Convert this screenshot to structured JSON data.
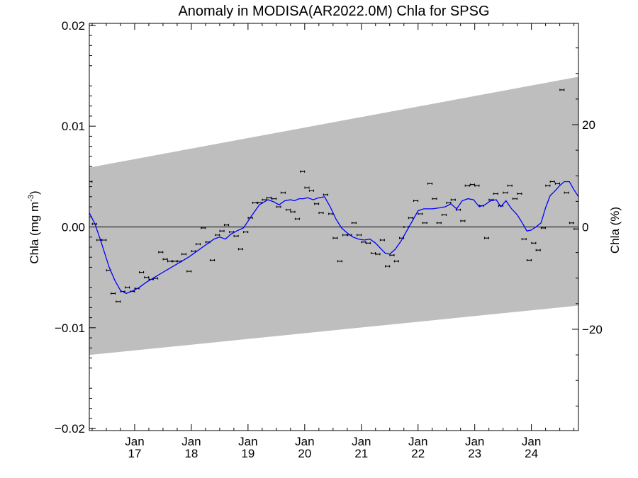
{
  "chart_data": {
    "type": "line",
    "title": "Anomaly in MODISA(AR2022.0M) Chla for SPSG",
    "ylabel_left": {
      "main": "Chla (mg m",
      "sup": "-3",
      "close": ")"
    },
    "ylabel_right": "Chla (%)",
    "xlim": [
      2016.2,
      2024.83
    ],
    "ylim": [
      -0.0202,
      0.0202
    ],
    "ylim_right": [
      -39.8,
      39.8
    ],
    "yticks_left": [
      {
        "v": 0.02,
        "label": "0.02"
      },
      {
        "v": 0.01,
        "label": "0.01"
      },
      {
        "v": 0.0,
        "label": "0.00"
      },
      {
        "v": -0.01,
        "label": "−0.01"
      },
      {
        "v": -0.02,
        "label": "−0.02"
      }
    ],
    "yticks_right": [
      {
        "v": 20,
        "label": "20"
      },
      {
        "v": 0,
        "label": "0"
      },
      {
        "v": -20,
        "label": "−20"
      }
    ],
    "xticks": [
      {
        "v": 2017.0,
        "month": "Jan",
        "year": "17"
      },
      {
        "v": 2018.0,
        "month": "Jan",
        "year": "18"
      },
      {
        "v": 2019.0,
        "month": "Jan",
        "year": "19"
      },
      {
        "v": 2020.0,
        "month": "Jan",
        "year": "20"
      },
      {
        "v": 2021.0,
        "month": "Jan",
        "year": "21"
      },
      {
        "v": 2022.0,
        "month": "Jan",
        "year": "22"
      },
      {
        "v": 2023.0,
        "month": "Jan",
        "year": "23"
      },
      {
        "v": 2024.0,
        "month": "Jan",
        "year": "24"
      }
    ],
    "band": {
      "color": "#bebebe",
      "upper": [
        [
          2016.2,
          0.0059
        ],
        [
          2024.83,
          0.0149
        ]
      ],
      "lower": [
        [
          2016.2,
          -0.0127
        ],
        [
          2024.83,
          -0.0078
        ]
      ]
    },
    "zero_line": 0.0,
    "colors": {
      "line": "#0000ff",
      "points": "#000000"
    },
    "series": [
      {
        "type": "scatter",
        "x": [
          2016.21,
          2016.29,
          2016.37,
          2016.46,
          2016.54,
          2016.62,
          2016.71,
          2016.79,
          2016.87,
          2016.96,
          2017.04,
          2017.12,
          2017.21,
          2017.29,
          2017.37,
          2017.46,
          2017.54,
          2017.62,
          2017.71,
          2017.79,
          2017.87,
          2017.96,
          2018.04,
          2018.12,
          2018.21,
          2018.29,
          2018.37,
          2018.46,
          2018.54,
          2018.62,
          2018.71,
          2018.79,
          2018.87,
          2018.96,
          2019.04,
          2019.12,
          2019.21,
          2019.29,
          2019.37,
          2019.46,
          2019.54,
          2019.62,
          2019.71,
          2019.79,
          2019.87,
          2019.96,
          2020.04,
          2020.12,
          2020.21,
          2020.29,
          2020.37,
          2020.46,
          2020.54,
          2020.62,
          2020.71,
          2020.79,
          2020.87,
          2020.96,
          2021.04,
          2021.12,
          2021.21,
          2021.29,
          2021.37,
          2021.46,
          2021.54,
          2021.62,
          2021.71,
          2021.79,
          2021.87,
          2021.96,
          2022.04,
          2022.12,
          2022.21,
          2022.29,
          2022.37,
          2022.46,
          2022.54,
          2022.62,
          2022.71,
          2022.79,
          2022.87,
          2022.96,
          2023.04,
          2023.12,
          2023.21,
          2023.29,
          2023.37,
          2023.46,
          2023.54,
          2023.62,
          2023.71,
          2023.79,
          2023.87,
          2023.96,
          2024.04,
          2024.12,
          2024.21,
          2024.29,
          2024.37,
          2024.46,
          2024.54,
          2024.62,
          2024.71,
          2024.79
        ],
        "y": [
          0.0045,
          0.0003,
          -0.0013,
          -0.0013,
          -0.0043,
          -0.0066,
          -0.0074,
          -0.0064,
          -0.006,
          -0.0064,
          -0.0061,
          -0.0045,
          -0.005,
          -0.0052,
          -0.0051,
          -0.0025,
          -0.0032,
          -0.0034,
          -0.0034,
          -0.0034,
          -0.0027,
          -0.0044,
          -0.0024,
          -0.0017,
          -0.0001,
          -0.0015,
          -0.0033,
          -0.0008,
          -0.0004,
          0.0002,
          -0.0005,
          -0.0009,
          -0.0022,
          -0.0005,
          0.0009,
          0.0024,
          0.0024,
          0.0027,
          0.0029,
          0.0028,
          0.002,
          0.0034,
          0.0017,
          0.0015,
          0.0008,
          0.0055,
          0.0039,
          0.0036,
          0.0023,
          0.0014,
          0.0032,
          0.0013,
          -0.0011,
          -0.0034,
          -0.0008,
          -0.0008,
          0.0004,
          -0.0008,
          -0.0015,
          -0.0016,
          -0.0026,
          -0.0027,
          -0.0013,
          -0.0039,
          -0.0028,
          -0.0034,
          -0.0011,
          0.0,
          0.0009,
          0.0026,
          0.0013,
          0.0004,
          0.0043,
          0.0028,
          0.0004,
          0.0012,
          0.0024,
          0.0027,
          0.0017,
          0.0006,
          0.0041,
          0.0042,
          0.0041,
          0.0021,
          -0.0011,
          0.0027,
          0.0033,
          0.0021,
          0.0034,
          0.0041,
          0.0028,
          0.0033,
          -0.0012,
          -0.0033,
          -0.0016,
          -0.0023,
          -0.0001,
          0.0041,
          0.0045,
          0.0043,
          0.0136,
          0.0034,
          0.0004,
          -0.0002
        ]
      },
      {
        "type": "line",
        "x": [
          2016.2,
          2016.3,
          2016.42,
          2016.55,
          2016.65,
          2016.75,
          2016.85,
          2016.98,
          2017.08,
          2017.2,
          2017.35,
          2017.5,
          2017.65,
          2017.8,
          2017.95,
          2018.1,
          2018.25,
          2018.4,
          2018.5,
          2018.6,
          2018.7,
          2018.8,
          2018.92,
          2019.05,
          2019.2,
          2019.35,
          2019.45,
          2019.55,
          2019.65,
          2019.75,
          2019.82,
          2019.9,
          2019.98,
          2020.05,
          2020.15,
          2020.25,
          2020.35,
          2020.45,
          2020.55,
          2020.65,
          2020.75,
          2020.85,
          2020.95,
          2021.05,
          2021.15,
          2021.25,
          2021.35,
          2021.42,
          2021.5,
          2021.6,
          2021.7,
          2021.8,
          2021.9,
          2022.0,
          2022.1,
          2022.25,
          2022.38,
          2022.48,
          2022.58,
          2022.68,
          2022.78,
          2022.88,
          2022.98,
          2023.08,
          2023.18,
          2023.28,
          2023.38,
          2023.46,
          2023.55,
          2023.65,
          2023.75,
          2023.85,
          2023.92,
          2024.0,
          2024.08,
          2024.17,
          2024.25,
          2024.33,
          2024.42,
          2024.5,
          2024.58,
          2024.67,
          2024.75,
          2024.83
        ],
        "y": [
          0.0014,
          0.0003,
          -0.0017,
          -0.004,
          -0.0053,
          -0.0063,
          -0.0066,
          -0.0063,
          -0.006,
          -0.0055,
          -0.005,
          -0.0045,
          -0.004,
          -0.0035,
          -0.003,
          -0.0024,
          -0.0018,
          -0.0012,
          -0.001,
          -0.0012,
          -0.0007,
          -0.0004,
          -0.0001,
          0.001,
          0.0022,
          0.0027,
          0.0025,
          0.0022,
          0.0026,
          0.0027,
          0.0026,
          0.0028,
          0.0028,
          0.0029,
          0.0027,
          0.0029,
          0.003,
          0.002,
          0.0008,
          -0.0001,
          -0.0006,
          -0.001,
          -0.0012,
          -0.0013,
          -0.0012,
          -0.0016,
          -0.0022,
          -0.0026,
          -0.0027,
          -0.0022,
          -0.0014,
          -0.0004,
          0.0006,
          0.0016,
          0.0018,
          0.0018,
          0.0019,
          0.002,
          0.0023,
          0.0018,
          0.0026,
          0.0028,
          0.0027,
          0.002,
          0.0022,
          0.0026,
          0.0027,
          0.002,
          0.0026,
          0.0018,
          0.0012,
          0.0003,
          -0.0004,
          -0.0003,
          0.0,
          0.0004,
          0.0019,
          0.0031,
          0.0036,
          0.0041,
          0.0045,
          0.0045,
          0.0037,
          0.003
        ]
      }
    ]
  }
}
